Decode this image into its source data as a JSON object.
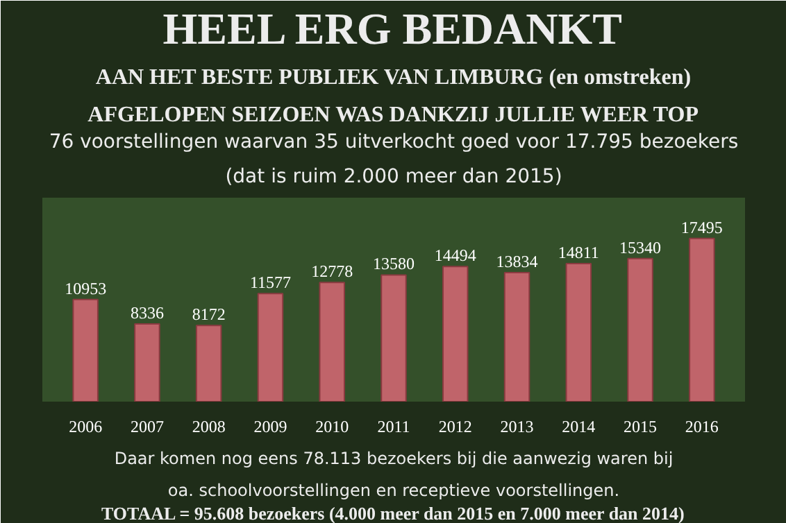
{
  "chart_data": {
    "type": "bar",
    "title": "HEEL ERG BEDANKT",
    "subtitle": "AAN HET BESTE PUBLIEK VAN LIMBURG (en omstreken)",
    "annotations": [
      "AFGELOPEN SEIZOEN WAS DANKZIJ JULLIE WEER TOP",
      "76 voorstellingen waarvan 35 uitverkocht goed voor 17.795 bezoekers",
      "(dat is ruim 2.000 meer dan 2015)",
      "Daar komen nog eens 78.113 bezoekers bij die aanwezig waren bij",
      "oa. schoolvoorstellingen en receptieve voorstellingen.",
      "TOTAAL = 95.608 bezoekers (4.000 meer dan 2015 en 7.000 meer dan 2014)"
    ],
    "categories": [
      "2006",
      "2007",
      "2008",
      "2009",
      "2010",
      "2011",
      "2012",
      "2013",
      "2014",
      "2015",
      "2016"
    ],
    "values": [
      10953,
      8336,
      8172,
      11577,
      12778,
      13580,
      14494,
      13834,
      14811,
      15340,
      17495
    ],
    "color": "#c0646a",
    "data_labels": true,
    "grid": false
  }
}
